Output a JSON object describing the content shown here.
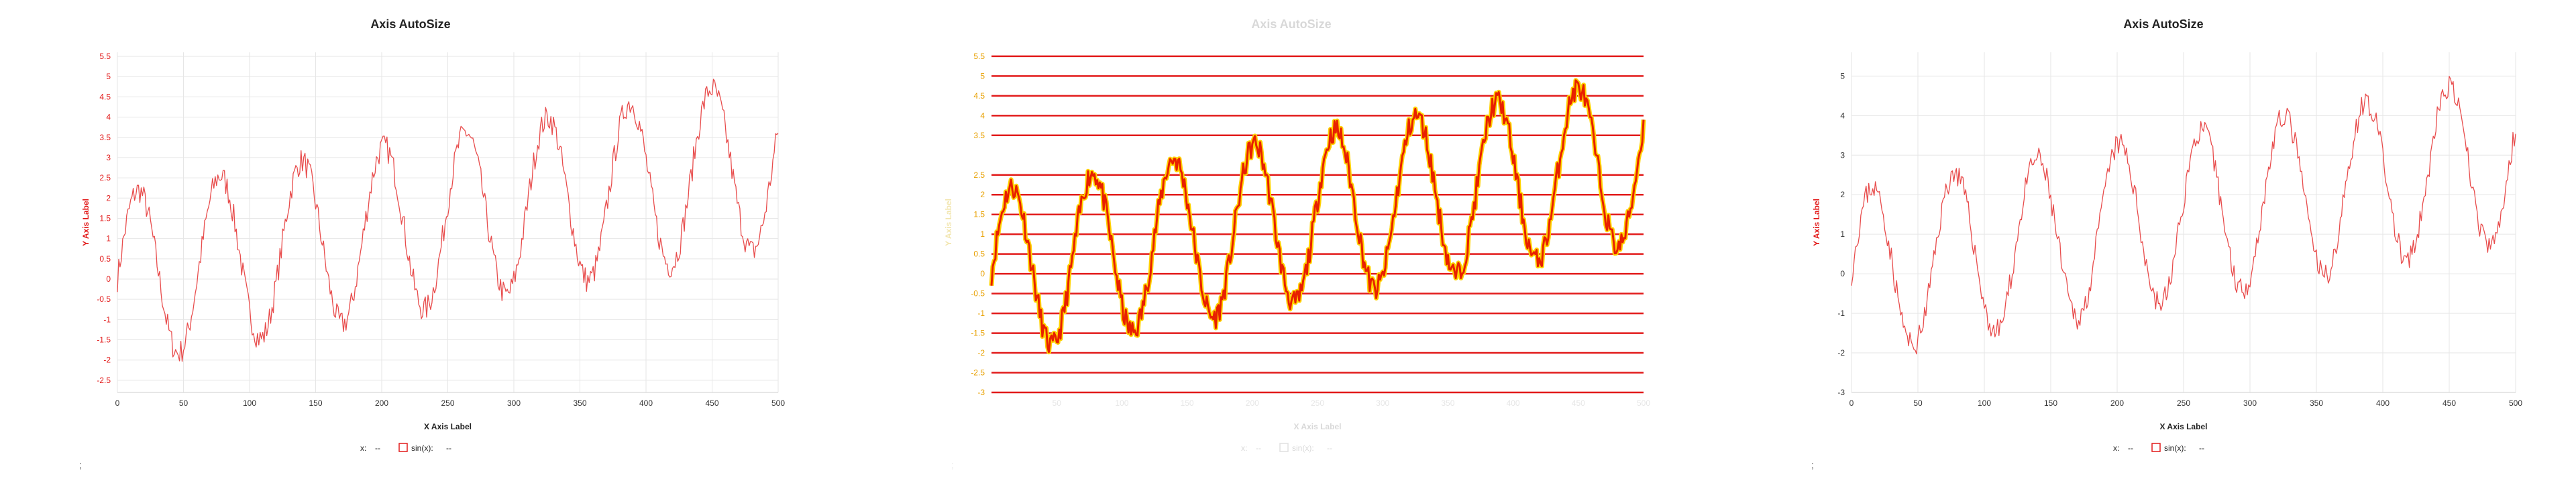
{
  "chart_data": [
    {
      "type": "line",
      "title": "Axis AutoSize",
      "xlabel": "X Axis Label",
      "ylabel": "Y Axis Label",
      "xlim": [
        0,
        500
      ],
      "ylim": [
        -2.8,
        5.6
      ],
      "x_ticks": [
        "0",
        "50",
        "100",
        "150",
        "200",
        "250",
        "300",
        "350",
        "400",
        "450",
        "500"
      ],
      "y_ticks": [
        "5.5",
        "5",
        "4.5",
        "4",
        "3.5",
        "3",
        "2.5",
        "2",
        "1.5",
        "1",
        "0.5",
        "0",
        "-0.5",
        "-1",
        "-1.5",
        "-2",
        "-2.5"
      ],
      "grid": true,
      "legend": "bottom-center",
      "legend_items": [
        {
          "label": "x:",
          "value": "--"
        },
        {
          "label": "sin(x):",
          "value": "--"
        }
      ],
      "series": [
        {
          "name": "sin(x)",
          "color": "#e84c4c"
        }
      ],
      "generator": {
        "form": "sin + trend + noise",
        "amplitude": 2.1,
        "cycles_x": 62,
        "trend_per_x": 0.0058,
        "noise": 0.32,
        "seed": 7,
        "points": 500
      },
      "footnote": ";"
    },
    {
      "type": "line",
      "title": "Axis AutoSize",
      "title_faded": true,
      "xlabel": "X Axis Label",
      "ylabel": "Y Axis Label",
      "xlim": [
        0,
        500
      ],
      "ylim": [
        -3.0,
        5.6
      ],
      "x_ticks": [
        "50",
        "100",
        "150",
        "200",
        "250",
        "300",
        "350",
        "400",
        "450",
        "500"
      ],
      "y_ticks": [
        "5.5",
        "5",
        "4.5",
        "4",
        "3.5",
        "2.5",
        "2",
        "1.5",
        "1",
        "0.5",
        "0",
        "-0.5",
        "-1",
        "-1.5",
        "-2",
        "-2.5",
        "-3"
      ],
      "grid": true,
      "legend": "bottom-center",
      "legend_items": [
        {
          "label": "x:",
          "value": "--"
        },
        {
          "label": "sin(x):",
          "value": "--"
        }
      ],
      "series": [
        {
          "name": "sin(x)",
          "color": "#e82000",
          "highlight": "#ffd200"
        }
      ],
      "generator": {
        "form": "sin + trend + noise",
        "amplitude": 2.1,
        "cycles_x": 62,
        "trend_per_x": 0.0058,
        "noise": 0.3,
        "seed": 11,
        "points": 500
      },
      "footnote": ";"
    },
    {
      "type": "line",
      "title": "Axis AutoSize",
      "xlabel": "X Axis Label",
      "ylabel": "Y Axis Label",
      "xlim": [
        0,
        500
      ],
      "ylim": [
        -3.0,
        5.6
      ],
      "x_ticks": [
        "0",
        "50",
        "100",
        "150",
        "200",
        "250",
        "300",
        "350",
        "400",
        "450",
        "500"
      ],
      "y_ticks": [
        "5",
        "4",
        "3",
        "2",
        "1",
        "0",
        "-1",
        "-2",
        "-3"
      ],
      "grid": true,
      "legend": "bottom-center",
      "legend_items": [
        {
          "label": "x:",
          "value": "--"
        },
        {
          "label": "sin(x):",
          "value": "--"
        }
      ],
      "series": [
        {
          "name": "sin(x)",
          "color": "#e84c4c"
        }
      ],
      "generator": {
        "form": "sin + trend + noise",
        "amplitude": 2.1,
        "cycles_x": 62,
        "trend_per_x": 0.0058,
        "noise": 0.3,
        "seed": 23,
        "points": 500
      },
      "footnote": ";"
    }
  ]
}
